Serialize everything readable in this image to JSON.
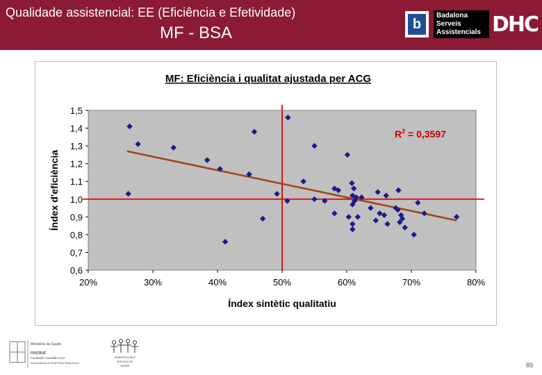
{
  "header": {
    "title": "Qualidade assistencial:  EE (Eficiência e Efetividade)",
    "subtitle": "MF - BSA",
    "logo_b": "b",
    "logo_bsa_lines": [
      "Badalona",
      "Serveis",
      "Assistencials"
    ],
    "logo_dhc": "DHC",
    "background_color": "#8b1a34"
  },
  "footer": {
    "org_lines": [
      "Ministério da Saúde",
      "FIOCRUZ",
      "Fundação Oswaldo Cruz",
      "Escola Nacional de Saúde Pública Sergio Arouca"
    ],
    "logo2_lines": [
      "ENSP/FIOCRUZ",
      "ESCOLA DE",
      "SAÚDE"
    ],
    "page_number": "89"
  },
  "chart_data": {
    "type": "scatter",
    "title": "MF: Eficiència i qualitat ajustada per ACG",
    "xlabel": "Índex sintètic qualitatiu",
    "ylabel": "Índex d'eficiència",
    "xlim": [
      0.2,
      0.8
    ],
    "ylim": [
      0.6,
      1.5
    ],
    "x_ticks": [
      0.2,
      0.3,
      0.4,
      0.5,
      0.6,
      0.7,
      0.8
    ],
    "x_tick_labels": [
      "20%",
      "30%",
      "40%",
      "50%",
      "60%",
      "70%",
      "80%"
    ],
    "y_ticks": [
      0.6,
      0.7,
      0.8,
      0.9,
      1.0,
      1.1,
      1.2,
      1.3,
      1.4,
      1.5
    ],
    "y_tick_labels": [
      "0,6",
      "0,7",
      "0,8",
      "0,9",
      "1,0",
      "1,1",
      "1,2",
      "1,3",
      "1,4",
      "1,5"
    ],
    "annotation": "R",
    "annotation_sup": "2",
    "annotation_value": " = 0,3597",
    "reference_lines": {
      "x": 0.5,
      "y": 1.0
    },
    "trendline": {
      "x": [
        0.26,
        0.77
      ],
      "y": [
        1.27,
        0.88
      ]
    },
    "colors": {
      "points": "#1a1a8c",
      "trend": "#a0461e",
      "reference": "#e00000",
      "plot_bg": "#c0c0c0",
      "annotation": "#c00000"
    },
    "points": [
      {
        "x": 0.264,
        "y": 1.41
      },
      {
        "x": 0.277,
        "y": 1.31
      },
      {
        "x": 0.262,
        "y": 1.03
      },
      {
        "x": 0.332,
        "y": 1.29
      },
      {
        "x": 0.384,
        "y": 1.22
      },
      {
        "x": 0.404,
        "y": 1.17
      },
      {
        "x": 0.412,
        "y": 0.76
      },
      {
        "x": 0.449,
        "y": 1.14
      },
      {
        "x": 0.457,
        "y": 1.38
      },
      {
        "x": 0.47,
        "y": 0.89
      },
      {
        "x": 0.492,
        "y": 1.03
      },
      {
        "x": 0.509,
        "y": 1.46
      },
      {
        "x": 0.508,
        "y": 0.99
      },
      {
        "x": 0.533,
        "y": 1.1
      },
      {
        "x": 0.55,
        "y": 1.3
      },
      {
        "x": 0.55,
        "y": 1.0
      },
      {
        "x": 0.566,
        "y": 0.99
      },
      {
        "x": 0.581,
        "y": 1.06
      },
      {
        "x": 0.587,
        "y": 1.05
      },
      {
        "x": 0.581,
        "y": 0.92
      },
      {
        "x": 0.601,
        "y": 1.25
      },
      {
        "x": 0.603,
        "y": 0.9
      },
      {
        "x": 0.608,
        "y": 1.09
      },
      {
        "x": 0.611,
        "y": 1.06
      },
      {
        "x": 0.609,
        "y": 1.02
      },
      {
        "x": 0.615,
        "y": 1.01
      },
      {
        "x": 0.612,
        "y": 0.99
      },
      {
        "x": 0.609,
        "y": 0.97
      },
      {
        "x": 0.617,
        "y": 0.9
      },
      {
        "x": 0.609,
        "y": 0.86
      },
      {
        "x": 0.609,
        "y": 0.83
      },
      {
        "x": 0.623,
        "y": 1.01
      },
      {
        "x": 0.637,
        "y": 0.95
      },
      {
        "x": 0.648,
        "y": 1.04
      },
      {
        "x": 0.645,
        "y": 0.88
      },
      {
        "x": 0.651,
        "y": 0.92
      },
      {
        "x": 0.658,
        "y": 0.91
      },
      {
        "x": 0.661,
        "y": 1.02
      },
      {
        "x": 0.663,
        "y": 0.86
      },
      {
        "x": 0.676,
        "y": 0.95
      },
      {
        "x": 0.679,
        "y": 0.94
      },
      {
        "x": 0.68,
        "y": 1.05
      },
      {
        "x": 0.682,
        "y": 0.87
      },
      {
        "x": 0.684,
        "y": 0.91
      },
      {
        "x": 0.686,
        "y": 0.89
      },
      {
        "x": 0.69,
        "y": 0.84
      },
      {
        "x": 0.704,
        "y": 0.8
      },
      {
        "x": 0.71,
        "y": 0.98
      },
      {
        "x": 0.72,
        "y": 0.92
      },
      {
        "x": 0.77,
        "y": 0.9
      }
    ]
  }
}
